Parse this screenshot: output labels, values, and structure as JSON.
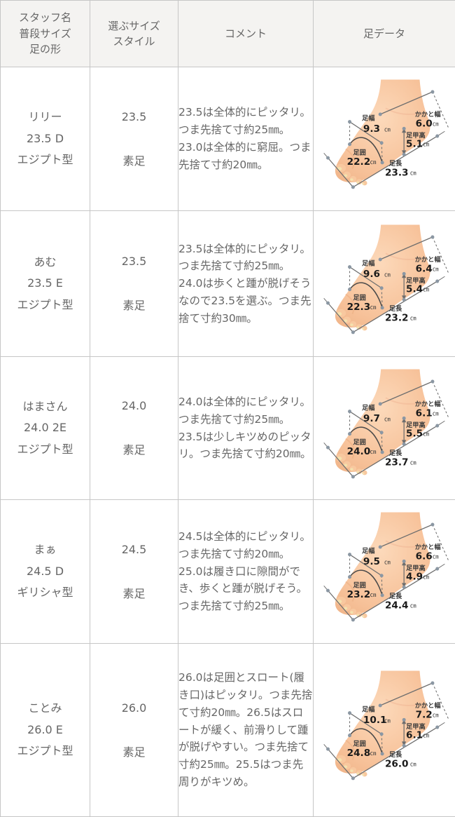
{
  "table": {
    "headers": [
      {
        "id": "staff",
        "label": "スタッフ名\n普段サイズ\n足の形"
      },
      {
        "id": "size",
        "label": "選ぶサイズ\nスタイル"
      },
      {
        "id": "comment",
        "label": "コメント"
      },
      {
        "id": "foot",
        "label": "足データ"
      }
    ]
  },
  "foot_diagram": {
    "labels": {
      "width": "足幅",
      "heel": "かかと幅",
      "instep": "足甲高",
      "girth": "足囲",
      "length": "足長",
      "unit": "㎝"
    },
    "colors": {
      "skin_light": "#fcd9ba",
      "skin_mid": "#f7c29a",
      "skin_dark": "#efb286",
      "line": "#6e6e6e",
      "dot": "#8b97a3",
      "label_text": "#3c3c3c",
      "number_text": "#1a1a1a"
    }
  },
  "rows": [
    {
      "staff": "リリー\n23.5 D\nエジプト型",
      "size": "23.5",
      "style": "素足",
      "comment": "23.5は全体的にピッタリ。つま先捨て寸約25㎜。23.0は全体的に窮屈。つま先捨て寸約20㎜。",
      "foot": {
        "width": "9.3",
        "heel": "6.0",
        "instep": "5.1",
        "girth": "22.2",
        "length": "23.3"
      }
    },
    {
      "staff": "あむ\n23.5 E\nエジプト型",
      "size": "23.5",
      "style": "素足",
      "comment": "23.5は全体的にピッタリ。つま先捨て寸約25㎜。24.0は歩くと踵が脱げそうなので23.5を選ぶ。つま先捨て寸約30㎜。",
      "foot": {
        "width": "9.6",
        "heel": "6.4",
        "instep": "5.4",
        "girth": "22.3",
        "length": "23.2"
      }
    },
    {
      "staff": "はまさん\n24.0 2E\nエジプト型",
      "size": "24.0",
      "style": "素足",
      "comment": "24.0は全体的にピッタリ。つま先捨て寸約25㎜。23.5は少しキツめのピッタリ。つま先捨て寸約20㎜。",
      "foot": {
        "width": "9.7",
        "heel": "6.1",
        "instep": "5.5",
        "girth": "24.0",
        "length": "23.7"
      }
    },
    {
      "staff": "まぁ\n24.5 D\nギリシャ型",
      "size": "24.5",
      "style": "素足",
      "comment": "24.5は全体的にピッタリ。つま先捨て寸約20㎜。25.0は履き口に隙間ができ、歩くと踵が脱げそう。つま先捨て寸約25㎜。",
      "foot": {
        "width": "9.5",
        "heel": "6.6",
        "instep": "4.9",
        "girth": "23.2",
        "length": "24.4"
      }
    },
    {
      "staff": "ことみ\n26.0 E\nエジプト型",
      "size": "26.0",
      "style": "素足",
      "comment": "26.0は足囲とスロート(履き口)はピッタリ。つま先捨て寸約20㎜。26.5はスロートが緩く、前滑りして踵が脱げやすい。つま先捨て寸約25㎜。25.5はつま先周りがキツめ。",
      "foot": {
        "width": "10.1",
        "heel": "7.2",
        "instep": "6.1",
        "girth": "24.8",
        "length": "26.0"
      }
    }
  ]
}
